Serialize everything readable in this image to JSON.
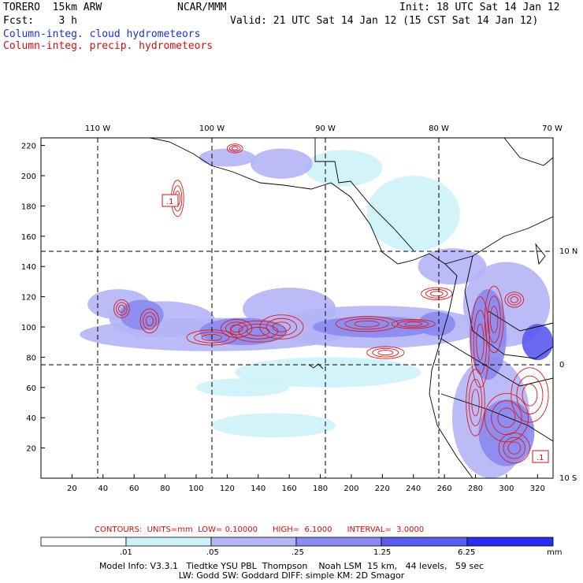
{
  "header": {
    "model": "TORERO  15km ARW",
    "org": "NCAR/MMM",
    "init": "Init: 18 UTC Sat 14 Jan 12",
    "fcst": "Fcst:    3 h",
    "valid": "Valid: 21 UTC Sat 14 Jan 12 (15 CST Sat 14 Jan 12)",
    "field1": "Column-integ. cloud hydrometeors",
    "field2": "Column-integ. precip. hydrometeors"
  },
  "colors": {
    "cloud_light": "#cdf2f9",
    "cloud_mid": "#b4b4f6",
    "cloud_strong": "#8a8af0",
    "cloud_darker": "#5a5aee",
    "cloud_max": "#2d2df2",
    "precip": "#e01818",
    "frame": "#000000"
  },
  "chart_data": {
    "type": "contour_map",
    "x_ticks": [
      "20",
      "40",
      "60",
      "80",
      "100",
      "120",
      "140",
      "160",
      "180",
      "200",
      "220",
      "240",
      "260",
      "280",
      "300",
      "320"
    ],
    "y_ticks": [
      "20",
      "40",
      "60",
      "80",
      "100",
      "120",
      "140",
      "160",
      "180",
      "200",
      "220"
    ],
    "lon_labels": [
      "110 W",
      "100 W",
      "90 W",
      "80 W",
      "70 W"
    ],
    "lat_labels": [
      "10 N",
      "0",
      "10 S"
    ],
    "xlim": [
      0,
      330
    ],
    "ylim": [
      0,
      225
    ],
    "contour_caption": "CONTOURS:  UNITS=mm  LOW= 0.10000      HIGH=  6.1000      INTERVAL=  3.0000",
    "box_labels": [
      ".1",
      ".1"
    ],
    "colorbar": {
      "thresholds": [
        ".01",
        ".05",
        ".25",
        "1.25",
        "6.25"
      ],
      "unit": "mm"
    },
    "cloud_blobs": [
      {
        "x": 110,
        "y": 95,
        "rx": 85,
        "ry": 11,
        "level": 2
      },
      {
        "x": 130,
        "y": 97,
        "rx": 28,
        "ry": 9,
        "level": 3
      },
      {
        "x": 78,
        "y": 105,
        "rx": 34,
        "ry": 12,
        "level": 2
      },
      {
        "x": 215,
        "y": 100,
        "rx": 70,
        "ry": 14,
        "level": 2
      },
      {
        "x": 215,
        "y": 100,
        "rx": 40,
        "ry": 7,
        "level": 3
      },
      {
        "x": 255,
        "y": 102,
        "rx": 12,
        "ry": 8,
        "level": 3
      },
      {
        "x": 50,
        "y": 115,
        "rx": 20,
        "ry": 10,
        "level": 2
      },
      {
        "x": 65,
        "y": 108,
        "rx": 14,
        "ry": 10,
        "level": 3
      },
      {
        "x": 160,
        "y": 112,
        "rx": 30,
        "ry": 14,
        "level": 2
      },
      {
        "x": 185,
        "y": 70,
        "rx": 60,
        "ry": 10,
        "level": 1
      },
      {
        "x": 150,
        "y": 35,
        "rx": 40,
        "ry": 8,
        "level": 1
      },
      {
        "x": 300,
        "y": 115,
        "rx": 28,
        "ry": 28,
        "level": 2
      },
      {
        "x": 288,
        "y": 95,
        "rx": 12,
        "ry": 30,
        "level": 3
      },
      {
        "x": 290,
        "y": 40,
        "rx": 25,
        "ry": 40,
        "level": 2
      },
      {
        "x": 300,
        "y": 30,
        "rx": 18,
        "ry": 22,
        "level": 3
      },
      {
        "x": 120,
        "y": 212,
        "rx": 18,
        "ry": 6,
        "level": 2
      },
      {
        "x": 155,
        "y": 208,
        "rx": 20,
        "ry": 10,
        "level": 2
      },
      {
        "x": 195,
        "y": 205,
        "rx": 25,
        "ry": 12,
        "level": 1
      },
      {
        "x": 240,
        "y": 175,
        "rx": 30,
        "ry": 25,
        "level": 1
      },
      {
        "x": 265,
        "y": 140,
        "rx": 22,
        "ry": 12,
        "level": 2
      },
      {
        "x": 130,
        "y": 60,
        "rx": 30,
        "ry": 6,
        "level": 1
      },
      {
        "x": 320,
        "y": 90,
        "rx": 10,
        "ry": 12,
        "level": 4
      }
    ],
    "precip_contours": [
      {
        "x": 140,
        "y": 97,
        "rx": 18,
        "ry": 7
      },
      {
        "x": 155,
        "y": 100,
        "rx": 14,
        "ry": 8
      },
      {
        "x": 110,
        "y": 93,
        "rx": 16,
        "ry": 5
      },
      {
        "x": 126,
        "y": 99,
        "rx": 10,
        "ry": 6
      },
      {
        "x": 70,
        "y": 104,
        "rx": 6,
        "ry": 8
      },
      {
        "x": 52,
        "y": 112,
        "rx": 5,
        "ry": 6
      },
      {
        "x": 210,
        "y": 102,
        "rx": 20,
        "ry": 5
      },
      {
        "x": 240,
        "y": 102,
        "rx": 14,
        "ry": 3
      },
      {
        "x": 222,
        "y": 83,
        "rx": 12,
        "ry": 4
      },
      {
        "x": 283,
        "y": 90,
        "rx": 6,
        "ry": 30
      },
      {
        "x": 292,
        "y": 105,
        "rx": 6,
        "ry": 22
      },
      {
        "x": 280,
        "y": 50,
        "rx": 6,
        "ry": 22
      },
      {
        "x": 300,
        "y": 40,
        "rx": 14,
        "ry": 16
      },
      {
        "x": 315,
        "y": 55,
        "rx": 12,
        "ry": 18
      },
      {
        "x": 305,
        "y": 20,
        "rx": 10,
        "ry": 10
      },
      {
        "x": 125,
        "y": 218,
        "rx": 5,
        "ry": 3
      },
      {
        "x": 88,
        "y": 185,
        "rx": 4,
        "ry": 12
      },
      {
        "x": 255,
        "y": 122,
        "rx": 10,
        "ry": 4
      },
      {
        "x": 305,
        "y": 118,
        "rx": 6,
        "ry": 5
      }
    ]
  },
  "footer": {
    "line1": "Model Info: V3.3.1   Tiedtke YSU PBL  Thompson    Noah LSM  15 km,   44 levels,   59 sec",
    "line2": "LW: Godd SW: Goddard DIFF: simple KM: 2D Smagor"
  }
}
